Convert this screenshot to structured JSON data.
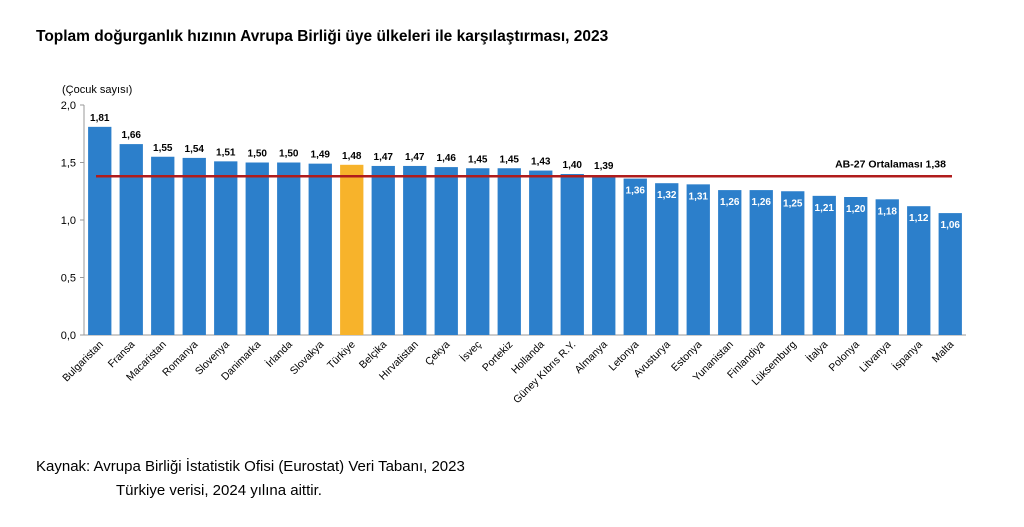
{
  "header": {
    "title": "Toplam doğurganlık hızının Avrupa Birliği üye ülkeleri ile karşılaştırması, 2023"
  },
  "source": {
    "line1": "Kaynak: Avrupa Birliği İstatistik Ofisi (Eurostat) Veri Tabanı, 2023",
    "line2": "Türkiye verisi, 2024 yılına aittir."
  },
  "chart_data": {
    "type": "bar",
    "title": "Toplam doğurganlık hızının Avrupa Birliği üye ülkeleri ile karşılaştırması, 2023",
    "ylabel": "(Çocuk sayısı)",
    "xlabel": "",
    "ylim": [
      0,
      2.0
    ],
    "yticks": [
      "0,0",
      "0,5",
      "1,0",
      "1,5",
      "2,0"
    ],
    "grid": false,
    "categories": [
      "Bulgaristan",
      "Fransa",
      "Macaristan",
      "Romanya",
      "Slovenya",
      "Danimarka",
      "İrlanda",
      "Slovakya",
      "Türkiye",
      "Belçika",
      "Hırvatistan",
      "Çekya",
      "İsveç",
      "Portekiz",
      "Hollanda",
      "Güney Kıbrıs R.Y.",
      "Almanya",
      "Letonya",
      "Avusturya",
      "Estonya",
      "Yunanistan",
      "Finlandiya",
      "Lüksemburg",
      "İtalya",
      "Polonya",
      "Litvanya",
      "İspanya",
      "Malta"
    ],
    "values": [
      1.81,
      1.66,
      1.55,
      1.54,
      1.51,
      1.5,
      1.5,
      1.49,
      1.48,
      1.47,
      1.47,
      1.46,
      1.45,
      1.45,
      1.43,
      1.4,
      1.39,
      1.36,
      1.32,
      1.31,
      1.26,
      1.26,
      1.25,
      1.21,
      1.2,
      1.18,
      1.12,
      1.06
    ],
    "value_labels": [
      "1,81",
      "1,66",
      "1,55",
      "1,54",
      "1,51",
      "1,50",
      "1,50",
      "1,49",
      "1,48",
      "1,47",
      "1,47",
      "1,46",
      "1,45",
      "1,45",
      "1,43",
      "1,40",
      "1,39",
      "1,36",
      "1,32",
      "1,31",
      "1,26",
      "1,26",
      "1,25",
      "1,21",
      "1,20",
      "1,18",
      "1,12",
      "1,06"
    ],
    "highlight_category": "Türkiye",
    "colors": {
      "bar": "#2c7fcb",
      "highlight": "#f7b32b",
      "average_line": "#b01c1c",
      "axis": "#999999"
    },
    "reference_line": {
      "label": "AB-27 Ortalaması",
      "value": 1.38,
      "value_label": "1,38"
    }
  }
}
